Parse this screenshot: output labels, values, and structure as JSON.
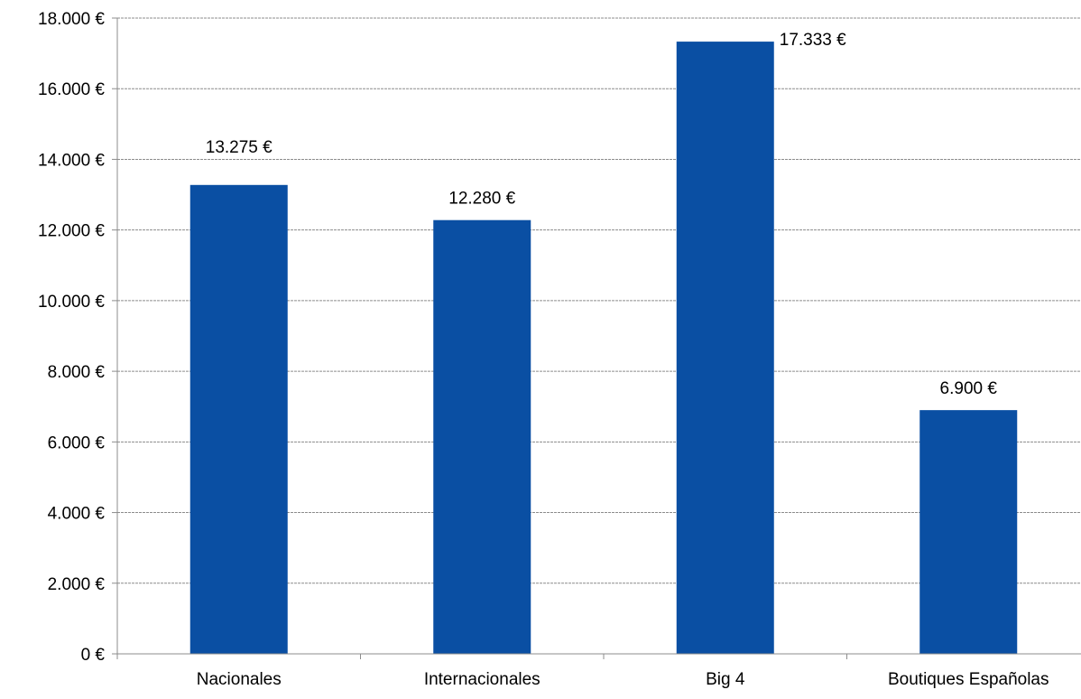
{
  "chart_data": {
    "type": "bar",
    "title": "",
    "xlabel": "",
    "ylabel": "",
    "categories": [
      "Nacionales",
      "Internacionales",
      "Big 4",
      "Boutiques Españolas"
    ],
    "values": [
      13275,
      12280,
      17333,
      6900
    ],
    "data_labels": [
      "13.275 €",
      "12.280 €",
      "17.333 €",
      "6.900 €"
    ],
    "ylim": [
      0,
      18000
    ],
    "y_ticks": [
      0,
      2000,
      4000,
      6000,
      8000,
      10000,
      12000,
      14000,
      16000,
      18000
    ],
    "y_tick_labels": [
      "0 €",
      "2.000 €",
      "4.000 €",
      "6.000 €",
      "8.000 €",
      "10.000 €",
      "12.000 €",
      "14.000 €",
      "16.000 €",
      "18.000 €"
    ],
    "grid": true,
    "legend": "none",
    "bar_color": "#0a4fa3"
  }
}
